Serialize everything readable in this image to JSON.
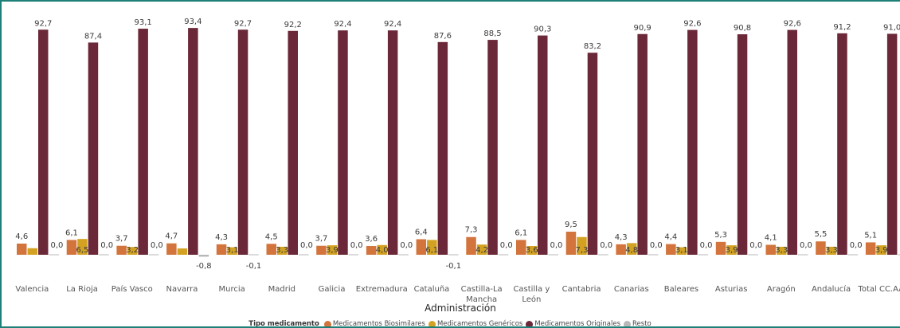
{
  "chart_data": {
    "type": "bar",
    "xlabel": "Administración",
    "legend_title": "Tipo medicamento",
    "legend_position": "bottom-center",
    "grid": false,
    "ylim": [
      -1.5,
      95
    ],
    "categories": [
      "Valencia",
      "La Rioja",
      "País Vasco",
      "Navarra",
      "Murcia",
      "Madrid",
      "Galicia",
      "Extremadura",
      "Cataluña",
      "Castilla-La Mancha",
      "Castilla y León",
      "Cantabria",
      "Canarias",
      "Baleares",
      "Asturias",
      "Aragón",
      "Andalucía",
      "Total CC.AA"
    ],
    "category_labels": [
      [
        "Valencia"
      ],
      [
        "La Rioja"
      ],
      [
        "País Vasco"
      ],
      [
        "Navarra"
      ],
      [
        "Murcia"
      ],
      [
        "Madrid"
      ],
      [
        "Galicia"
      ],
      [
        "Extremadura"
      ],
      [
        "Cataluña"
      ],
      [
        "Castilla-La",
        "Mancha"
      ],
      [
        "Castilla y",
        "León"
      ],
      [
        "Cantabria"
      ],
      [
        "Canarias"
      ],
      [
        "Baleares"
      ],
      [
        "Asturias"
      ],
      [
        "Aragón"
      ],
      [
        "Andalucía"
      ],
      [
        "Total CC.AA"
      ]
    ],
    "series": [
      {
        "name": "Medicamentos Biosimilares",
        "color": "#d2743c",
        "values": [
          4.6,
          6.1,
          3.7,
          4.7,
          4.3,
          4.5,
          3.7,
          3.6,
          6.4,
          7.3,
          6.1,
          9.5,
          4.3,
          4.4,
          5.3,
          4.1,
          5.5,
          5.1
        ]
      },
      {
        "name": "Medicamentos Genéricos",
        "color": "#d4a223",
        "values": [
          2.7,
          6.5,
          3.2,
          2.6,
          3.1,
          3.3,
          3.9,
          4.0,
          6.1,
          4.2,
          3.6,
          7.3,
          4.8,
          3.1,
          3.9,
          3.3,
          3.3,
          3.9
        ]
      },
      {
        "name": "Medicamentos Originales",
        "color": "#6b2838",
        "values": [
          92.7,
          87.4,
          93.1,
          93.4,
          92.7,
          92.2,
          92.4,
          92.4,
          87.6,
          88.5,
          90.3,
          83.2,
          90.9,
          92.6,
          90.8,
          92.6,
          91.2,
          91.0
        ]
      },
      {
        "name": "Resto",
        "color": "#b8b8b8",
        "values": [
          0.0,
          0.0,
          0.0,
          -0.8,
          -0.1,
          0.0,
          0.0,
          0.0,
          -0.1,
          0.0,
          0.0,
          0.0,
          0.0,
          0.0,
          0.0,
          0.0,
          0.0,
          0.0
        ]
      }
    ],
    "data_labels": [
      [
        "4,6",
        "6,1",
        "3,7",
        "4,7",
        "4,3",
        "4,5",
        "3,7",
        "3,6",
        "6,4",
        "7,3",
        "6,1",
        "9,5",
        "4,3",
        "4,4",
        "5,3",
        "4,1",
        "5,5",
        "5,1"
      ],
      [
        "",
        "6,5",
        "3,2",
        "",
        "3,1",
        "3,3",
        "3,9",
        "4,0",
        "6,1",
        "4,2",
        "3,6",
        "7,3",
        "4,8",
        "3,1",
        "3,9",
        "3,3",
        "3,3",
        "3,9"
      ],
      [
        "92,7",
        "87,4",
        "93,1",
        "93,4",
        "92,7",
        "92,2",
        "92,4",
        "92,4",
        "87,6",
        "88,5",
        "90,3",
        "83,2",
        "90,9",
        "92,6",
        "90,8",
        "92,6",
        "91,2",
        "91,0"
      ],
      [
        "0,0",
        "0,0",
        "0,0",
        "-0,8",
        "-0,1",
        "0,0",
        "0,0",
        "0,0",
        "-0,1",
        "0,0",
        "0,0",
        "0,0",
        "0,0",
        "0,0",
        "0,0",
        "0,0",
        "0,0",
        "0,0"
      ]
    ]
  }
}
